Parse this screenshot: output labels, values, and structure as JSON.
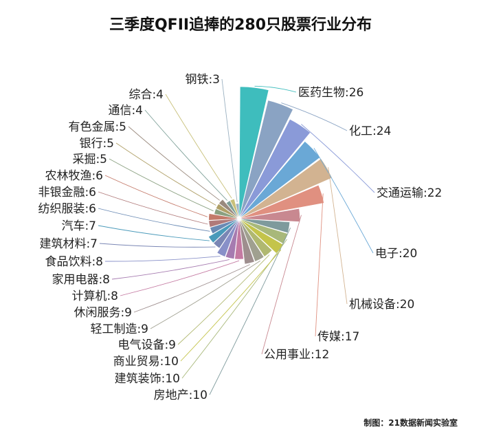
{
  "chart_data": {
    "type": "pie",
    "title": "三季度QFII追捧的280只股票行业分布",
    "source_note": "制图：21数据新闻实验室",
    "categories": [
      "医药生物",
      "化工",
      "交通运输",
      "电子",
      "机械设备",
      "传媒",
      "公用事业",
      "房地产",
      "建筑装饰",
      "商业贸易",
      "电气设备",
      "轻工制造",
      "休闲服务",
      "计算机",
      "家用电器",
      "食品饮料",
      "建筑材料",
      "汽车",
      "纺织服装",
      "非银金融",
      "农林牧渔",
      "采掘",
      "银行",
      "有色金属",
      "通信",
      "综合",
      "钢铁"
    ],
    "values": [
      26,
      24,
      22,
      20,
      20,
      17,
      12,
      10,
      10,
      10,
      9,
      9,
      9,
      8,
      8,
      8,
      7,
      7,
      6,
      6,
      6,
      5,
      5,
      5,
      4,
      4,
      3
    ],
    "labels": [
      "医药生物:26",
      "化工:24",
      "交通运输:22",
      "电子:20",
      "机械设备:20",
      "传媒:17",
      "公用事业:12",
      "房地产:10",
      "建筑装饰:10",
      "商业贸易:10",
      "电气设备:9",
      "轻工制造:9",
      "休闲服务:9",
      "计算机:8",
      "家用电器:8",
      "食品饮料:8",
      "建筑材料:7",
      "汽车:7",
      "纺织服装:6",
      "非银金融:6",
      "农林牧渔:6",
      "采掘:5",
      "银行:5",
      "有色金属:5",
      "通信:4",
      "综合:4",
      "钢铁:3"
    ],
    "colors": [
      "#3ebdbd",
      "#8aa3c3",
      "#8a9ad8",
      "#6aa8d6",
      "#d2b391",
      "#e09080",
      "#c88890",
      "#7e9a9c",
      "#a8b87a",
      "#c4c44a",
      "#b0b870",
      "#a0a090",
      "#9e8e8e",
      "#c47aa2",
      "#a67bb0",
      "#8890c8",
      "#7a86b4",
      "#4a9aba",
      "#6a8ab4",
      "#b07a7a",
      "#c47a6a",
      "#8aa080",
      "#b0a068",
      "#9a8a7e",
      "#7ea098",
      "#c8c07a",
      "#9ab0c0"
    ],
    "legend_placement": "outside labels with leader lines"
  }
}
